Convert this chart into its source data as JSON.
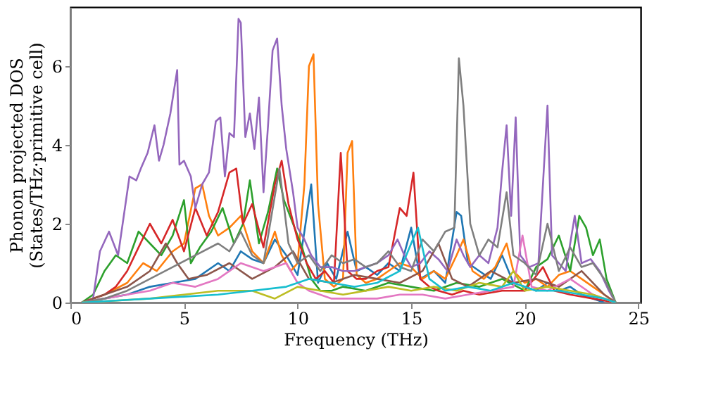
{
  "chart_data": {
    "type": "line",
    "xlabel": "Frequency (THz)",
    "ylabel": "Phonon projected DOS\n(States/THz·primitive cell)",
    "xlim": [
      0,
      25.1
    ],
    "ylim": [
      0,
      7.5
    ],
    "xticks": [
      0,
      5,
      10,
      15,
      20,
      25
    ],
    "yticks": [
      0,
      2,
      4,
      6
    ],
    "grid": false,
    "line_style": "solid",
    "series": [
      {
        "color": "#1f77b4",
        "x": [
          0.5,
          1.5,
          2.5,
          3.5,
          4.5,
          5.5,
          6.5,
          7.0,
          7.5,
          8.0,
          8.5,
          9.0,
          9.5,
          10.0,
          10.3,
          10.6,
          10.9,
          11.3,
          11.7,
          12.2,
          12.6,
          13.0,
          13.5,
          14.0,
          14.5,
          15.0,
          15.4,
          16.0,
          16.5,
          17.0,
          17.2,
          17.5,
          18.0,
          18.5,
          19.0,
          19.5,
          20.0,
          20.5,
          21.0,
          21.5,
          22.0,
          22.5,
          23.0,
          23.5
        ],
        "values": [
          0,
          0.1,
          0.2,
          0.4,
          0.5,
          0.6,
          1.0,
          0.8,
          1.3,
          1.1,
          1.0,
          1.6,
          1.2,
          0.7,
          1.8,
          3.0,
          0.5,
          1.0,
          0.6,
          1.8,
          0.8,
          0.9,
          0.7,
          1.0,
          0.8,
          1.9,
          0.6,
          0.8,
          0.5,
          2.3,
          2.2,
          1.0,
          0.8,
          0.6,
          1.2,
          0.5,
          0.4,
          0.3,
          0.5,
          0.3,
          0.4,
          0.2,
          0.1,
          0
        ]
      },
      {
        "color": "#ff7f0e",
        "x": [
          0.5,
          1.5,
          2.5,
          3.2,
          3.8,
          4.5,
          5.0,
          5.5,
          5.8,
          6.1,
          6.5,
          7.0,
          7.5,
          8.0,
          8.5,
          9.0,
          9.3,
          9.7,
          10.0,
          10.3,
          10.5,
          10.7,
          10.9,
          11.2,
          11.6,
          12.0,
          12.2,
          12.4,
          12.6,
          13.0,
          13.5,
          14.0,
          14.5,
          15.0,
          15.5,
          16.0,
          16.5,
          17.0,
          17.3,
          17.7,
          18.2,
          18.7,
          19.2,
          19.5,
          20.0,
          20.5,
          21.0,
          21.5,
          22.0,
          22.5,
          23.0,
          23.5,
          24.0
        ],
        "values": [
          0,
          0.2,
          0.5,
          1.0,
          0.8,
          1.3,
          1.5,
          2.9,
          3.0,
          2.2,
          1.7,
          1.9,
          2.2,
          1.3,
          1.0,
          1.8,
          1.2,
          0.8,
          1.0,
          3.0,
          6.0,
          6.3,
          2.5,
          0.6,
          0.4,
          0.6,
          3.8,
          4.1,
          0.7,
          0.5,
          0.6,
          0.8,
          1.0,
          0.9,
          0.6,
          0.8,
          0.6,
          1.2,
          1.6,
          0.8,
          0.6,
          0.9,
          1.5,
          0.8,
          0.5,
          0.6,
          0.4,
          0.7,
          0.8,
          0.6,
          0.4,
          0.2,
          0
        ]
      },
      {
        "color": "#2ca02c",
        "x": [
          0.5,
          1.0,
          1.5,
          2.0,
          2.5,
          3.0,
          3.5,
          4.0,
          4.5,
          5.0,
          5.3,
          5.7,
          6.2,
          6.7,
          7.2,
          7.6,
          7.9,
          8.3,
          8.7,
          9.1,
          9.4,
          9.8,
          10.2,
          10.6,
          11.0,
          11.5,
          12.0,
          13.0,
          14.0,
          15.0,
          16.0,
          17.0,
          18.0,
          19.0,
          20.0,
          20.5,
          21.0,
          21.5,
          22.0,
          22.4,
          22.7,
          23.0,
          23.3,
          23.6,
          24.0
        ],
        "values": [
          0,
          0.2,
          0.8,
          1.2,
          1.0,
          1.8,
          1.5,
          1.2,
          1.7,
          2.6,
          1.0,
          1.4,
          1.8,
          2.4,
          1.5,
          2.0,
          3.1,
          1.5,
          2.3,
          3.4,
          2.6,
          2.0,
          1.4,
          0.6,
          0.3,
          0.3,
          0.4,
          0.3,
          0.5,
          0.4,
          0.3,
          0.5,
          0.4,
          0.6,
          0.3,
          0.9,
          1.1,
          1.7,
          0.8,
          2.2,
          1.9,
          1.2,
          1.6,
          0.6,
          0
        ]
      },
      {
        "color": "#d62728",
        "x": [
          0.5,
          1.5,
          2.0,
          2.5,
          3.0,
          3.5,
          4.0,
          4.5,
          5.0,
          5.5,
          6.0,
          6.5,
          7.0,
          7.3,
          7.6,
          8.0,
          8.5,
          9.0,
          9.3,
          9.6,
          10.0,
          10.4,
          10.8,
          11.2,
          11.6,
          11.9,
          12.2,
          12.6,
          13.0,
          13.5,
          14.0,
          14.5,
          14.8,
          15.1,
          15.4,
          15.8,
          16.2,
          16.8,
          17.3,
          18.0,
          19.0,
          20.0,
          20.8,
          21.3,
          22.0,
          23.0,
          24.0
        ],
        "values": [
          0,
          0.2,
          0.4,
          0.8,
          1.4,
          2.0,
          1.5,
          2.1,
          1.3,
          2.4,
          1.7,
          2.3,
          3.3,
          3.4,
          2.0,
          2.5,
          1.4,
          3.0,
          3.6,
          2.5,
          1.6,
          1.0,
          0.6,
          0.8,
          0.5,
          3.8,
          0.8,
          0.6,
          0.6,
          0.8,
          0.9,
          2.4,
          2.2,
          3.3,
          0.6,
          0.4,
          0.3,
          0.2,
          0.3,
          0.2,
          0.3,
          0.3,
          0.9,
          0.3,
          0.2,
          0.1,
          0
        ]
      },
      {
        "color": "#9467bd",
        "x": [
          0.7,
          1.0,
          1.3,
          1.7,
          2.1,
          2.4,
          2.6,
          2.9,
          3.1,
          3.4,
          3.7,
          3.9,
          4.1,
          4.4,
          4.7,
          4.8,
          5.0,
          5.3,
          5.5,
          5.8,
          6.1,
          6.4,
          6.6,
          6.8,
          7.0,
          7.2,
          7.4,
          7.5,
          7.7,
          7.9,
          8.1,
          8.3,
          8.5,
          8.7,
          8.9,
          9.1,
          9.3,
          9.5,
          9.8,
          10.0,
          10.3,
          10.6,
          11.0,
          11.5,
          12.0,
          12.5,
          13.0,
          13.5,
          14.0,
          14.4,
          14.7,
          15.0,
          15.4,
          15.8,
          16.2,
          16.6,
          17.0,
          17.3,
          17.6,
          18.0,
          18.4,
          18.8,
          19.0,
          19.2,
          19.4,
          19.6,
          19.8,
          20.2,
          20.6,
          21.0,
          21.2,
          21.5,
          21.8,
          22.2,
          22.5,
          22.9,
          23.3,
          23.7,
          24.0
        ],
        "values": [
          0,
          0.1,
          1.3,
          1.8,
          1.2,
          2.4,
          3.2,
          3.1,
          3.4,
          3.8,
          4.5,
          3.6,
          4.0,
          4.8,
          5.9,
          3.5,
          3.6,
          3.2,
          2.4,
          3.0,
          3.3,
          4.6,
          4.7,
          3.2,
          4.3,
          4.2,
          7.2,
          7.1,
          4.2,
          4.8,
          3.9,
          5.2,
          2.8,
          4.5,
          6.4,
          6.7,
          5.0,
          3.9,
          2.8,
          1.9,
          1.6,
          1.2,
          0.9,
          0.9,
          0.8,
          0.8,
          0.9,
          1.0,
          1.2,
          1.6,
          1.2,
          0.9,
          1.0,
          1.3,
          1.1,
          0.8,
          1.6,
          1.2,
          0.9,
          1.2,
          1.0,
          1.9,
          3.3,
          4.5,
          2.2,
          4.7,
          1.2,
          0.9,
          1.0,
          5.0,
          1.2,
          1.0,
          0.8,
          2.2,
          1.0,
          1.1,
          0.8,
          0.3,
          0
        ]
      },
      {
        "color": "#8c564b",
        "x": [
          0.5,
          1.5,
          2.5,
          3.5,
          4.2,
          4.7,
          5.2,
          6.0,
          7.0,
          8.0,
          9.0,
          9.8,
          10.5,
          11.5,
          12.5,
          13.5,
          14.5,
          15.5,
          16.2,
          16.8,
          17.5,
          18.5,
          19.5,
          20.5,
          21.5,
          22.5,
          23.5,
          24.0
        ],
        "values": [
          0,
          0.2,
          0.4,
          0.8,
          1.5,
          1.0,
          0.6,
          0.7,
          1.0,
          0.6,
          0.9,
          1.3,
          0.6,
          0.5,
          0.7,
          0.6,
          0.5,
          0.8,
          1.5,
          0.6,
          0.4,
          0.8,
          0.5,
          0.6,
          0.4,
          0.8,
          0.2,
          0
        ]
      },
      {
        "color": "#e377c2",
        "x": [
          0.5,
          1.5,
          2.5,
          3.5,
          4.5,
          5.5,
          6.5,
          7.5,
          8.5,
          9.5,
          10.0,
          10.5,
          11.5,
          12.5,
          13.5,
          14.5,
          15.5,
          16.5,
          17.5,
          18.5,
          19.5,
          19.9,
          20.3,
          21.0,
          22.0,
          23.0,
          24.0
        ],
        "values": [
          0,
          0.1,
          0.2,
          0.3,
          0.5,
          0.4,
          0.6,
          1.0,
          0.8,
          1.0,
          0.5,
          0.3,
          0.1,
          0.1,
          0.1,
          0.2,
          0.2,
          0.1,
          0.2,
          0.3,
          0.4,
          1.7,
          0.4,
          0.3,
          0.6,
          0.2,
          0
        ]
      },
      {
        "color": "#7f7f7f",
        "x": [
          0.5,
          1.5,
          2.5,
          3.5,
          4.5,
          5.5,
          6.5,
          7.0,
          7.5,
          8.0,
          8.5,
          9.2,
          9.6,
          10.0,
          10.5,
          11.0,
          11.5,
          12.0,
          12.5,
          13.0,
          13.5,
          14.0,
          14.5,
          15.0,
          15.5,
          16.0,
          16.5,
          16.9,
          17.1,
          17.3,
          17.6,
          18.0,
          18.4,
          18.8,
          19.2,
          19.5,
          20.0,
          20.5,
          21.0,
          21.5,
          22.0,
          22.5,
          23.0,
          23.5,
          24.0
        ],
        "values": [
          0,
          0.1,
          0.3,
          0.6,
          0.9,
          1.2,
          1.5,
          1.3,
          1.8,
          1.2,
          1.0,
          3.4,
          1.5,
          1.0,
          1.2,
          0.8,
          1.2,
          1.0,
          1.1,
          0.9,
          1.0,
          1.3,
          0.9,
          0.8,
          1.6,
          1.3,
          1.8,
          1.9,
          6.2,
          5.0,
          2.0,
          1.2,
          1.6,
          1.4,
          2.8,
          1.2,
          1.0,
          0.7,
          2.0,
          0.8,
          1.4,
          0.9,
          1.0,
          0.6,
          0
        ]
      },
      {
        "color": "#bcbd22",
        "x": [
          0.5,
          2,
          3.5,
          5,
          6.5,
          8,
          9,
          10,
          11,
          12,
          13,
          14,
          15,
          16,
          17,
          18,
          19,
          19.5,
          20,
          21,
          22,
          23,
          24
        ],
        "values": [
          0,
          0.05,
          0.1,
          0.2,
          0.3,
          0.3,
          0.1,
          0.4,
          0.3,
          0.2,
          0.3,
          0.4,
          0.3,
          0.4,
          0.3,
          0.5,
          0.4,
          0.8,
          0.3,
          0.4,
          0.3,
          0.2,
          0
        ]
      },
      {
        "color": "#17becf",
        "x": [
          0.5,
          2,
          3.5,
          5,
          6.5,
          8,
          9.5,
          10.5,
          11.5,
          12.5,
          13.5,
          14.5,
          15.0,
          15.3,
          15.8,
          16.5,
          17.5,
          18.5,
          19.5,
          20.5,
          21.5,
          22.5,
          23.5,
          24
        ],
        "values": [
          0,
          0.05,
          0.1,
          0.15,
          0.2,
          0.3,
          0.4,
          0.6,
          0.5,
          0.4,
          0.5,
          0.8,
          1.5,
          1.9,
          0.6,
          0.3,
          0.4,
          0.3,
          0.5,
          0.3,
          0.3,
          0.2,
          0.1,
          0
        ]
      }
    ]
  }
}
